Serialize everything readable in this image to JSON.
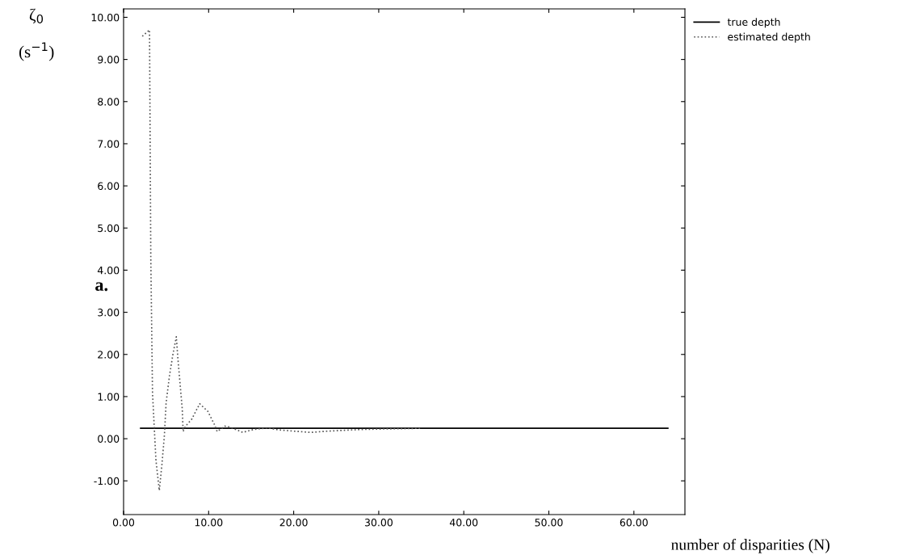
{
  "chart_data": {
    "type": "line",
    "xlabel": "number of disparities (N)",
    "ylabel": "ζ$_{0}$\n(s$^{−1}$)",
    "annotations": [
      "a."
    ],
    "xlim": [
      0,
      66
    ],
    "ylim": [
      -1.8,
      10.2
    ],
    "xticks": [
      {
        "value": 0,
        "label": "0.00"
      },
      {
        "value": 10,
        "label": "10.00"
      },
      {
        "value": 20,
        "label": "20.00"
      },
      {
        "value": 30,
        "label": "30.00"
      },
      {
        "value": 40,
        "label": "40.00"
      },
      {
        "value": 50,
        "label": "50.00"
      },
      {
        "value": 60,
        "label": "60.00"
      }
    ],
    "yticks": [
      {
        "value": -1,
        "label": "-1.00"
      },
      {
        "value": 0,
        "label": "0.00"
      },
      {
        "value": 1,
        "label": "1.00"
      },
      {
        "value": 2,
        "label": "2.00"
      },
      {
        "value": 3,
        "label": "3.00"
      },
      {
        "value": 4,
        "label": "4.00"
      },
      {
        "value": 5,
        "label": "5.00"
      },
      {
        "value": 6,
        "label": "6.00"
      },
      {
        "value": 7,
        "label": "7.00"
      },
      {
        "value": 8,
        "label": "8.00"
      },
      {
        "value": 9,
        "label": "9.00"
      },
      {
        "value": 10,
        "label": "10.00"
      }
    ],
    "grid": false,
    "legend": "top right",
    "marker": "none",
    "series": [
      {
        "name": "true depth",
        "color": "#000000",
        "line_style": "solid",
        "x": [
          2,
          64
        ],
        "values": [
          0.25,
          0.25
        ]
      },
      {
        "name": "estimated depth",
        "color": "#555555",
        "line_style": "dotted",
        "x": [
          2.2,
          3.05,
          3.2,
          3.4,
          3.8,
          4.2,
          4.5,
          4.8,
          5.0,
          5.4,
          5.8,
          6.2,
          6.4,
          6.9,
          7.0,
          7.3,
          8.0,
          8.95,
          9.9,
          10.7,
          11.0,
          11.9,
          12.6,
          14.0,
          15.3,
          16.9,
          18.2,
          20,
          22,
          24,
          26,
          28,
          30,
          33,
          35
        ],
        "values": [
          9.55,
          9.7,
          4.3,
          1.1,
          -0.5,
          -1.23,
          -0.63,
          0.08,
          0.85,
          1.5,
          2.0,
          2.42,
          1.87,
          0.7,
          0.17,
          0.3,
          0.46,
          0.83,
          0.65,
          0.33,
          0.17,
          0.3,
          0.27,
          0.15,
          0.22,
          0.26,
          0.21,
          0.18,
          0.15,
          0.18,
          0.2,
          0.22,
          0.23,
          0.24,
          0.25
        ]
      }
    ]
  }
}
